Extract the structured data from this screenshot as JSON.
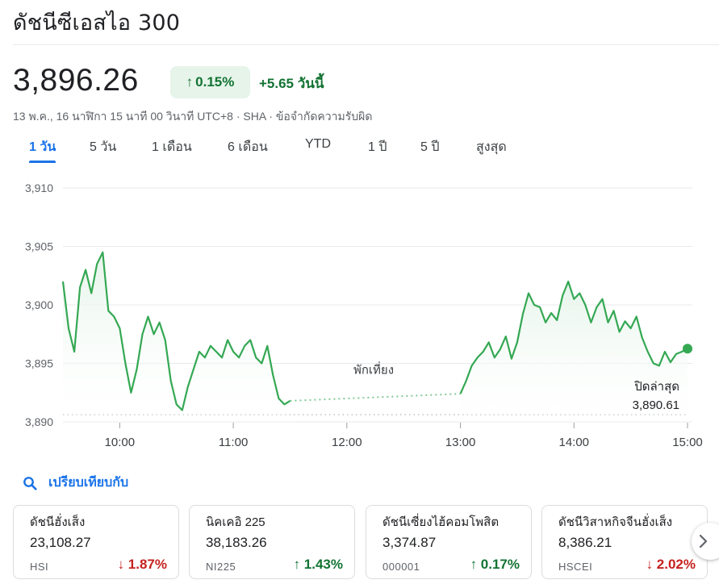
{
  "header": {
    "title": "ดัชนีซีเอสไอ 300"
  },
  "quote": {
    "price": "3,896.26",
    "change_pct": "0.15%",
    "change_abs": "+5.65 วันนี้",
    "meta": "13 พ.ค., 16 นาฬิกา 15 นาที 00 วินาที UTC+8 · SHA · ข้อจำกัดความรับผิด",
    "direction": "up"
  },
  "tabs": [
    {
      "label": "1 วัน",
      "active": true
    },
    {
      "label": "5 วัน",
      "active": false
    },
    {
      "label": "1 เดือน",
      "active": false
    },
    {
      "label": "6 เดือน",
      "active": false
    },
    {
      "label": "YTD",
      "active": false
    },
    {
      "label": "1 ปี",
      "active": false
    },
    {
      "label": "5 ปี",
      "active": false
    },
    {
      "label": "สูงสุด",
      "active": false
    }
  ],
  "chart_data": {
    "type": "line",
    "x_tick_labels": [
      "10:00",
      "11:00",
      "12:00",
      "13:00",
      "14:00",
      "15:00"
    ],
    "y_tick_labels": [
      "3,910",
      "3,905",
      "3,900",
      "3,895",
      "3,890"
    ],
    "ylim": [
      3890,
      3910
    ],
    "xlim": [
      "09:30",
      "15:00"
    ],
    "grid": true,
    "previous_close": 3890.61,
    "lunch_break": [
      "11:30",
      "13:00"
    ],
    "annotations": {
      "lunch_label": "พักเที่ยง",
      "prev_close_label": "ปิดล่าสุด",
      "prev_close_value": "3,890.61"
    },
    "colors": {
      "line": "#34a853",
      "fill": "#e6f4ea",
      "dotted": "#81c995",
      "grid": "#e8eaed",
      "prev_close_line": "#bdc1c6"
    },
    "series": [
      {
        "x": [
          "09:30",
          "09:33",
          "09:36",
          "09:39",
          "09:42",
          "09:45",
          "09:48",
          "09:51",
          "09:54",
          "09:57",
          "10:00",
          "10:03",
          "10:06",
          "10:09",
          "10:12",
          "10:15",
          "10:18",
          "10:21",
          "10:24",
          "10:27",
          "10:30",
          "10:33",
          "10:36",
          "10:39",
          "10:42",
          "10:45",
          "10:48",
          "10:51",
          "10:54",
          "10:57",
          "11:00",
          "11:03",
          "11:06",
          "11:09",
          "11:12",
          "11:15",
          "11:18",
          "11:21",
          "11:24",
          "11:27",
          "11:30",
          "13:00",
          "13:03",
          "13:06",
          "13:09",
          "13:12",
          "13:15",
          "13:18",
          "13:21",
          "13:24",
          "13:27",
          "13:30",
          "13:33",
          "13:36",
          "13:39",
          "13:42",
          "13:45",
          "13:48",
          "13:51",
          "13:54",
          "13:57",
          "14:00",
          "14:03",
          "14:06",
          "14:09",
          "14:12",
          "14:15",
          "14:18",
          "14:21",
          "14:24",
          "14:27",
          "14:30",
          "14:33",
          "14:36",
          "14:39",
          "14:42",
          "14:45",
          "14:48",
          "14:51",
          "14:54",
          "14:57",
          "15:00"
        ],
        "y": [
          3902.0,
          3898.0,
          3896.0,
          3901.5,
          3903.0,
          3901.0,
          3903.5,
          3904.5,
          3899.5,
          3899.0,
          3898.0,
          3895.0,
          3892.5,
          3894.5,
          3897.5,
          3899.0,
          3897.5,
          3898.5,
          3897.0,
          3893.5,
          3891.5,
          3891.0,
          3893.0,
          3894.5,
          3896.0,
          3895.5,
          3896.5,
          3896.0,
          3895.5,
          3897.0,
          3896.0,
          3895.5,
          3896.5,
          3897.0,
          3895.5,
          3895.0,
          3896.5,
          3894.0,
          3892.0,
          3891.5,
          3891.8,
          3892.4,
          3893.5,
          3894.8,
          3895.5,
          3896.0,
          3896.8,
          3895.5,
          3896.2,
          3897.3,
          3895.4,
          3896.8,
          3899.2,
          3901.0,
          3900.0,
          3899.8,
          3898.5,
          3899.3,
          3898.7,
          3900.8,
          3902.0,
          3900.5,
          3901.0,
          3900.0,
          3898.5,
          3899.8,
          3900.5,
          3898.5,
          3899.5,
          3897.7,
          3898.6,
          3898.0,
          3899.0,
          3897.2,
          3896.0,
          3895.0,
          3894.8,
          3896.0,
          3895.1,
          3895.8,
          3896.0,
          3896.26
        ]
      }
    ]
  },
  "compare": {
    "label": "เปรียบเทียบกับ"
  },
  "cards": [
    {
      "name": "ดัชนีฮั่งเส็ง",
      "value": "23,108.27",
      "symbol": "HSI",
      "change": "1.87%",
      "direction": "down"
    },
    {
      "name": "นิคเคอิ 225",
      "value": "38,183.26",
      "symbol": "NI225",
      "change": "1.43%",
      "direction": "up"
    },
    {
      "name": "ดัชนีเซี่ยงไฮ้คอมโพสิต",
      "value": "3,374.87",
      "symbol": "000001",
      "change": "0.17%",
      "direction": "up"
    },
    {
      "name": "ดัชนีวิสาหกิจจีนฮั่งเส็ง",
      "value": "8,386.21",
      "symbol": "HSCEI",
      "change": "2.02%",
      "direction": "down"
    }
  ],
  "icons": {
    "search": "search-icon",
    "next": "chevron-right-icon",
    "arrow_up": "arrow-up-icon",
    "arrow_down": "arrow-down-icon"
  }
}
